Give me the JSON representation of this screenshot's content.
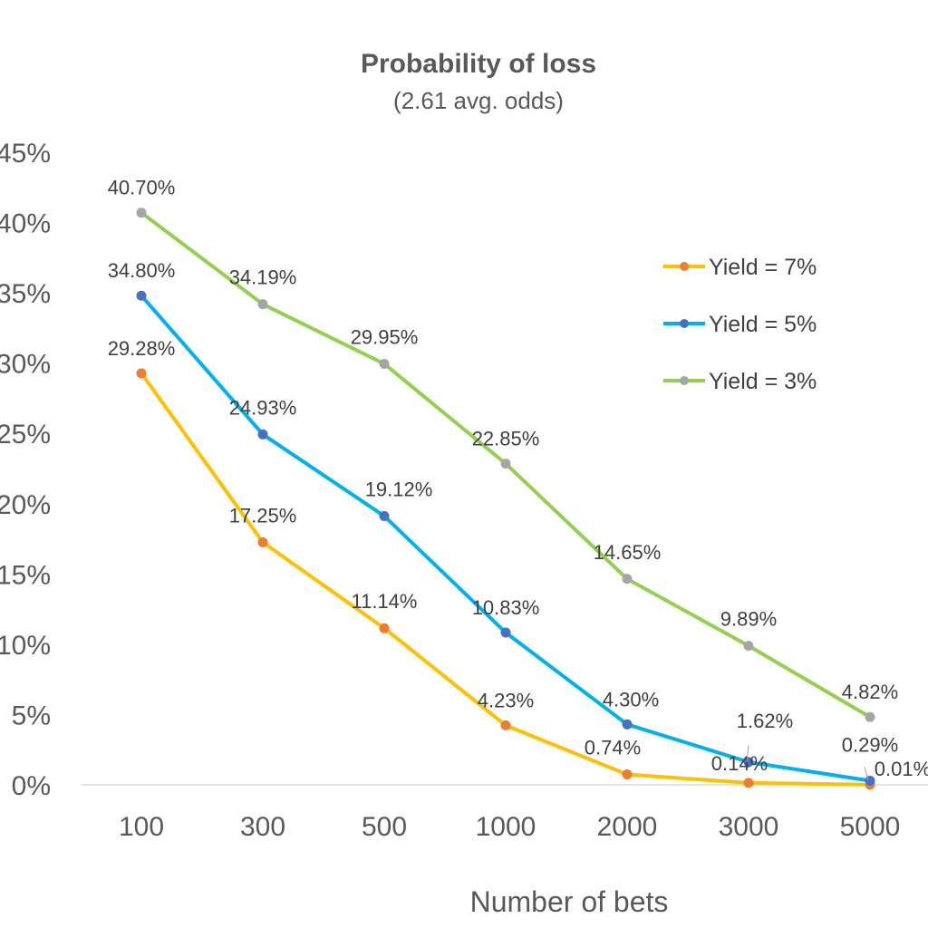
{
  "chart_data": {
    "type": "line",
    "title": "Probability of loss",
    "subtitle": "(2.61 avg. odds)",
    "xlabel": "Number of bets",
    "ylabel": "",
    "categories": [
      "100",
      "300",
      "500",
      "1000",
      "2000",
      "3000",
      "5000"
    ],
    "ylim": [
      0,
      45
    ],
    "yticks": [
      "0%",
      "5%",
      "10%",
      "15%",
      "20%",
      "25%",
      "30%",
      "35%",
      "40%",
      "45%"
    ],
    "grid": false,
    "legend_position": "right",
    "series": [
      {
        "name": "Yield = 7%",
        "color": "#FFC000",
        "marker_color": "#ED7D31",
        "values": [
          29.28,
          17.25,
          11.14,
          4.23,
          0.74,
          0.14,
          0.01
        ],
        "labels": [
          "29.28%",
          "17.25%",
          "11.14%",
          "4.23%",
          "0.74%",
          "0.14%",
          "0.01%"
        ]
      },
      {
        "name": "Yield = 5%",
        "color": "#00B0F0",
        "marker_color": "#4472C4",
        "values": [
          34.8,
          24.93,
          19.12,
          10.83,
          4.3,
          1.62,
          0.29
        ],
        "labels": [
          "34.80%",
          "24.93%",
          "19.12%",
          "10.83%",
          "4.30%",
          "1.62%",
          "0.29%"
        ]
      },
      {
        "name": "Yield = 3%",
        "color": "#92D050",
        "marker_color": "#A5A5A5",
        "values": [
          40.7,
          34.19,
          29.95,
          22.85,
          14.65,
          9.89,
          4.82
        ],
        "labels": [
          "40.70%",
          "34.19%",
          "29.95%",
          "22.85%",
          "14.65%",
          "9.89%",
          "4.82%"
        ]
      }
    ]
  }
}
